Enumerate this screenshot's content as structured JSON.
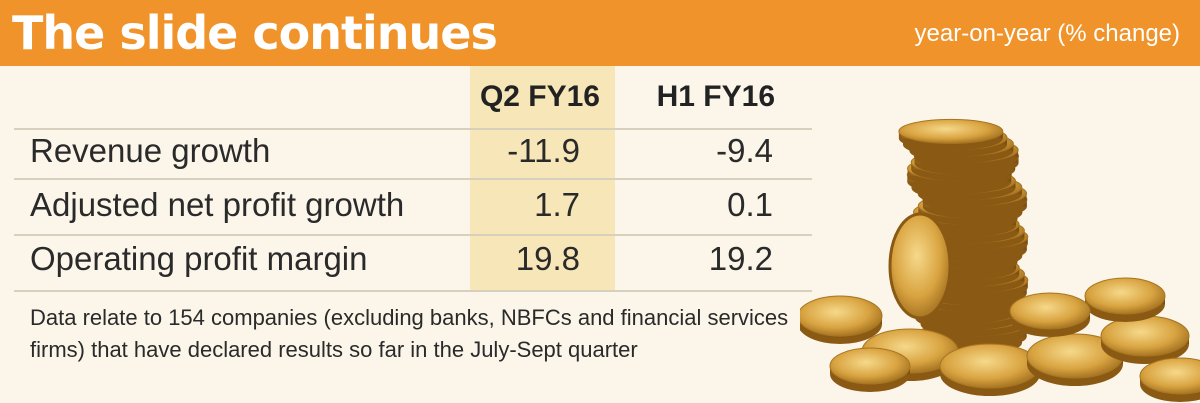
{
  "title": "The slide continues",
  "subtitle": "year-on-year (% change)",
  "columns": [
    "Q2 FY16",
    "H1 FY16"
  ],
  "rows": [
    {
      "label": "Revenue growth",
      "values": [
        "-11.9",
        "-9.4"
      ]
    },
    {
      "label": "Adjusted net profit growth",
      "values": [
        "1.7",
        "0.1"
      ]
    },
    {
      "label": "Operating profit margin",
      "values": [
        "19.8",
        "19.2"
      ]
    }
  ],
  "note": "Data relate to 154 companies (excluding banks, NBFCs and financial services firms) that have declared results so far in the July-Sept quarter",
  "colors": {
    "header": "#f0932a",
    "background": "#fbf6e9",
    "highlight": "#f6e6b8",
    "coin": "#d9a441"
  },
  "image": "gold-coins-stack"
}
